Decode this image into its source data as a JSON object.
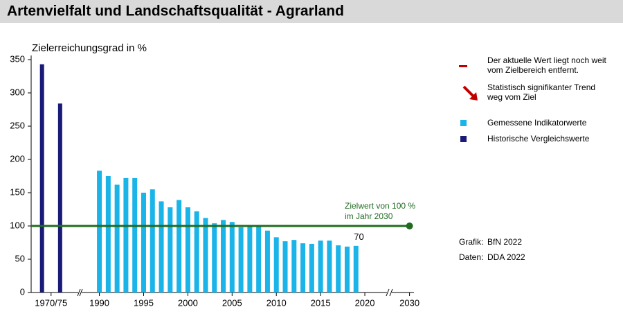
{
  "chart_data": {
    "type": "bar",
    "title": "Artenvielfalt und Landschaftsqualität - Agrarland",
    "y_label": "Zielerreichungsgrad in %",
    "ylim": [
      0,
      350
    ],
    "yticks": [
      0,
      50,
      100,
      150,
      200,
      250,
      300,
      350
    ],
    "xlim": [
      [
        1967,
        1980
      ],
      [
        1988,
        2022.5
      ],
      [
        2028,
        2030.5
      ]
    ],
    "xticks": [
      {
        "value": 1972.5,
        "label": "1970/75"
      },
      1990,
      1995,
      2000,
      2005,
      2010,
      2015,
      2020,
      2030
    ],
    "series": [
      {
        "name": "Historische Vergleichswerte",
        "color": "#1a1a78",
        "x": [
          1970,
          1975
        ],
        "values": [
          343,
          284
        ]
      },
      {
        "name": "Gemessene Indikatorwerte",
        "color": "#1ab4e8",
        "x": [
          1990,
          1991,
          1992,
          1993,
          1994,
          1995,
          1996,
          1997,
          1998,
          1999,
          2000,
          2001,
          2002,
          2003,
          2004,
          2005,
          2006,
          2007,
          2008,
          2009,
          2010,
          2011,
          2012,
          2013,
          2014,
          2015,
          2016,
          2017,
          2018,
          2019
        ],
        "values": [
          183,
          175,
          162,
          172,
          172,
          150,
          155,
          137,
          128,
          139,
          128,
          122,
          112,
          104,
          109,
          106,
          98,
          101,
          100,
          93,
          83,
          77,
          79,
          74,
          73,
          78,
          78,
          71,
          69,
          70
        ],
        "value_labels": [
          null,
          null,
          null,
          null,
          null,
          null,
          null,
          null,
          null,
          null,
          null,
          null,
          null,
          null,
          null,
          null,
          null,
          null,
          null,
          null,
          null,
          null,
          null,
          null,
          null,
          null,
          null,
          null,
          null,
          "70"
        ]
      }
    ],
    "target": {
      "value": 100,
      "x": 2030,
      "color": "#1f6b1f",
      "label": [
        "Zielwert von 100 %",
        "im Jahr 2030"
      ]
    },
    "status": {
      "color": "#c00000",
      "current": [
        "Der aktuelle Wert liegt noch weit",
        "vom Zielbereich entfernt."
      ],
      "trend": [
        "Statistisch signifikanter Trend",
        "weg vom Ziel"
      ]
    },
    "credits": [
      [
        "Grafik:",
        "BfN 2022"
      ],
      [
        "Daten:",
        "DDA 2022"
      ]
    ]
  }
}
